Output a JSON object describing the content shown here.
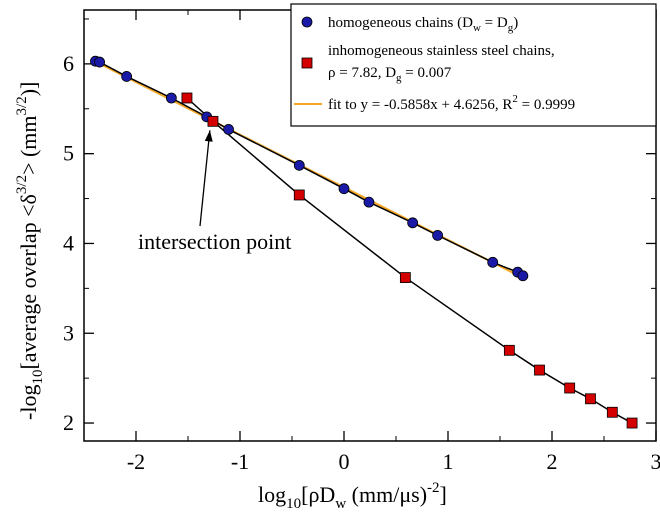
{
  "chart_data": {
    "type": "scatter",
    "xlim": [
      -2.5,
      3
    ],
    "ylim": [
      1.8,
      6.6
    ],
    "x_ticks": [
      -2,
      -1,
      0,
      1,
      2,
      3
    ],
    "y_ticks": [
      2,
      3,
      4,
      5,
      6
    ],
    "x_tick_labels": [
      "-2",
      "-1",
      "0",
      "1",
      "2",
      "3"
    ],
    "y_tick_labels": [
      "2",
      "3",
      "4",
      "5",
      "6"
    ],
    "xlabel": "log10[ρDw (mm/μs)^-2]",
    "ylabel": "-log10[average overlap <δ^3/2> (mm^3/2)]",
    "grid": false,
    "legend_position": "top-right",
    "series": [
      {
        "name": "homogeneous chains (Dw = Dg)",
        "marker": "circle",
        "color": "#1a1aa6",
        "x": [
          -2.39,
          -2.35,
          -2.09,
          -1.66,
          -1.32,
          -1.11,
          -0.43,
          0.0,
          0.24,
          0.66,
          0.9,
          1.43,
          1.67,
          1.72
        ],
        "y": [
          6.03,
          6.02,
          5.86,
          5.62,
          5.41,
          5.27,
          4.87,
          4.61,
          4.46,
          4.23,
          4.09,
          3.79,
          3.68,
          3.64
        ]
      },
      {
        "name": "inhomogeneous stainless steel chains, ρ = 7.82, Dg = 0.007",
        "marker": "square",
        "color": "#d40000",
        "x": [
          -1.51,
          -1.26,
          -0.43,
          0.59,
          1.59,
          1.88,
          2.17,
          2.37,
          2.58,
          2.77
        ],
        "y": [
          5.62,
          5.36,
          4.54,
          3.62,
          2.81,
          2.59,
          2.39,
          2.27,
          2.12,
          2.0
        ]
      }
    ],
    "fit_line": {
      "name": "fit to y = -0.5858x + 4.6256, R^2 = 0.9999",
      "slope": -0.5858,
      "intercept": 4.6256,
      "x_range": [
        -2.4,
        1.75
      ],
      "color": "#f5a623"
    },
    "annotation": {
      "text": "intersection point",
      "x": -1.62,
      "y": 4.1,
      "arrow_to": [
        -1.28,
        5.36
      ]
    }
  },
  "legend": {
    "entry1": "homogeneous chains (D",
    "entry1_sub1": "w",
    "entry1_mid": " = D",
    "entry1_sub2": "g",
    "entry1_end": ")",
    "entry2_line1": "inhomogeneous stainless steel chains,",
    "entry2_line2": "ρ = 7.82, D",
    "entry2_sub": "g",
    "entry2_end": " = 0.007",
    "entry3": "fit to y = -0.5858x + 4.6256, R",
    "entry3_sup": "2",
    "entry3_end": " = 0.9999"
  },
  "axis_labels": {
    "x_pre": "log",
    "x_sub": "10",
    "x_mid": "[ρD",
    "x_sub2": "w",
    "x_mid2": " (mm/μs)",
    "x_sup": "-2",
    "x_end": "]",
    "y_pre": "-log",
    "y_sub": "10",
    "y_mid": "[average overlap <δ",
    "y_sup": "3/2",
    "y_mid2": "> (mm",
    "y_sup2": "3/2",
    "y_end": ")]"
  },
  "annotation_text": "intersection point"
}
